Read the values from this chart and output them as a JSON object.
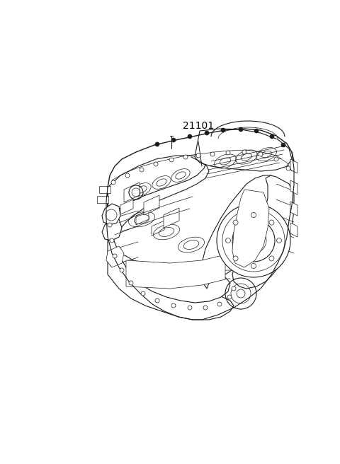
{
  "part_number": "21101",
  "bg_color": "#ffffff",
  "line_color": "#1a1a1a",
  "label_color": "#000000",
  "fig_width": 4.8,
  "fig_height": 6.56,
  "dpi": 100,
  "lw_main": 0.8,
  "lw_thin": 0.5,
  "lw_thick": 1.0
}
